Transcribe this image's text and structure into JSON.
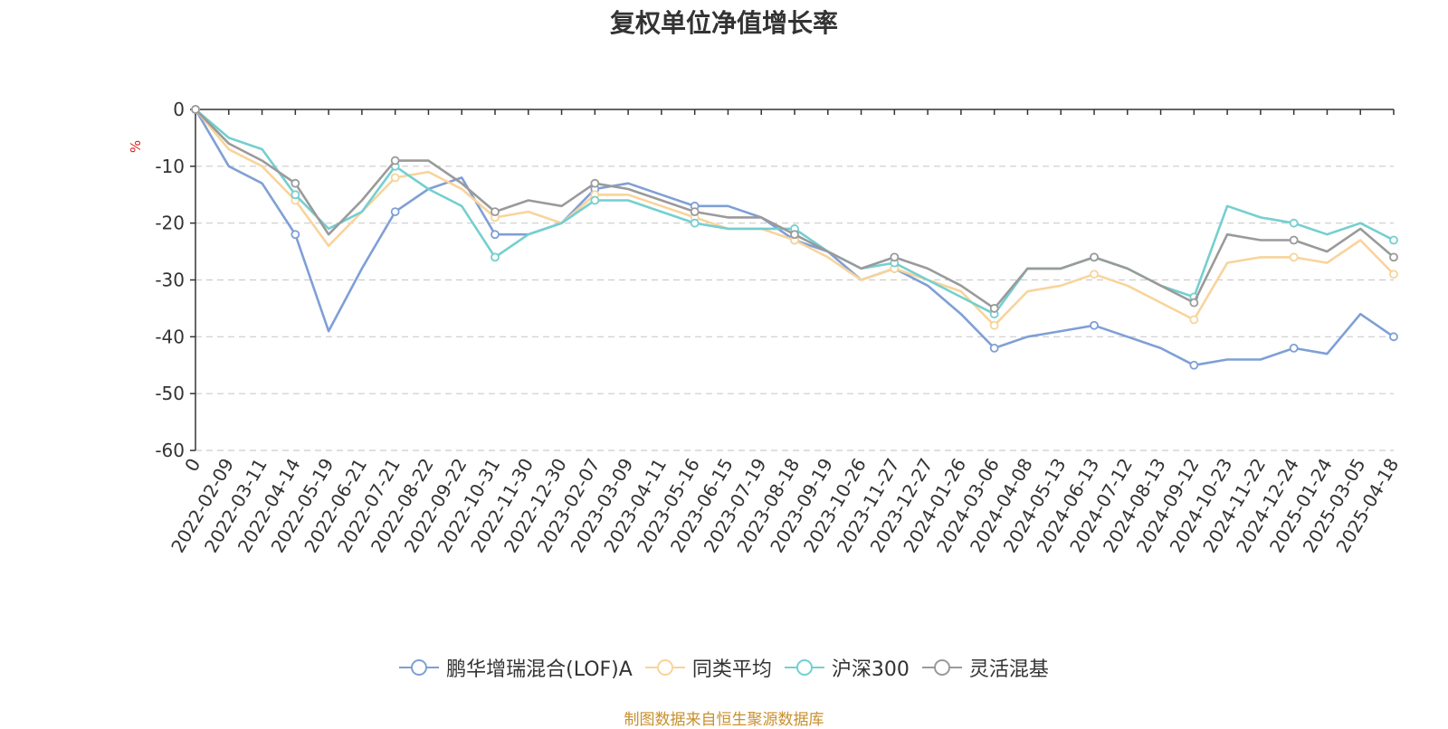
{
  "chart_data": {
    "type": "line",
    "title": "复权单位净值增长率",
    "ylabel": "%",
    "ylim": [
      -60,
      0
    ],
    "yticks": [
      0,
      -10,
      -20,
      -30,
      -40,
      -50,
      -60
    ],
    "grid": true,
    "legend_position": "bottom",
    "x": [
      "0",
      "2022-02-09",
      "2022-03-11",
      "2022-04-14",
      "2022-05-19",
      "2022-06-21",
      "2022-07-21",
      "2022-08-22",
      "2022-09-22",
      "2022-10-31",
      "2022-11-30",
      "2022-12-30",
      "2023-02-07",
      "2023-03-09",
      "2023-04-11",
      "2023-05-16",
      "2023-06-15",
      "2023-07-19",
      "2023-08-18",
      "2023-09-19",
      "2023-10-26",
      "2023-11-27",
      "2023-12-27",
      "2024-01-26",
      "2024-03-06",
      "2024-04-08",
      "2024-05-13",
      "2024-06-13",
      "2024-07-12",
      "2024-08-13",
      "2024-09-12",
      "2024-10-23",
      "2024-11-22",
      "2024-12-24",
      "2025-01-24",
      "2025-03-05",
      "2025-04-18"
    ],
    "series": [
      {
        "name": "鹏华增瑞混合(LOF)A",
        "color": "#7f9fd6",
        "values": [
          0,
          -10,
          -13,
          -22,
          -39,
          -28,
          -18,
          -14,
          -12,
          -22,
          -22,
          -20,
          -14,
          -13,
          -15,
          -17,
          -17,
          -19,
          -23,
          -25,
          -30,
          -28,
          -31,
          -36,
          -42,
          -40,
          -39,
          -38,
          -40,
          -42,
          -45,
          -44,
          -44,
          -42,
          -43,
          -36,
          -40
        ]
      },
      {
        "name": "同类平均",
        "color": "#f8d49b",
        "values": [
          0,
          -7,
          -10,
          -16,
          -24,
          -18,
          -12,
          -11,
          -14,
          -19,
          -18,
          -20,
          -15,
          -15,
          -17,
          -19,
          -21,
          -21,
          -23,
          -26,
          -30,
          -28,
          -30,
          -32,
          -38,
          -32,
          -31,
          -29,
          -31,
          -34,
          -37,
          -27,
          -26,
          -26,
          -27,
          -23,
          -29
        ]
      },
      {
        "name": "沪深300",
        "color": "#74cfd0",
        "values": [
          0,
          -5,
          -7,
          -15,
          -21,
          -18,
          -10,
          -14,
          -17,
          -26,
          -22,
          -20,
          -16,
          -16,
          -18,
          -20,
          -21,
          -21,
          -21,
          -25,
          -28,
          -27,
          -30,
          -33,
          -36,
          -28,
          -28,
          -26,
          -28,
          -31,
          -33,
          -17,
          -19,
          -20,
          -22,
          -20,
          -23
        ]
      },
      {
        "name": "灵活混基",
        "color": "#9a9a9a",
        "values": [
          0,
          -6,
          -9,
          -13,
          -22,
          -16,
          -9,
          -9,
          -13,
          -18,
          -16,
          -17,
          -13,
          -14,
          -16,
          -18,
          -19,
          -19,
          -22,
          -25,
          -28,
          -26,
          -28,
          -31,
          -35,
          -28,
          -28,
          -26,
          -28,
          -31,
          -34,
          -22,
          -23,
          -23,
          -25,
          -21,
          -26
        ]
      }
    ]
  },
  "footer": {
    "source": "制图数据来自恒生聚源数据库"
  }
}
